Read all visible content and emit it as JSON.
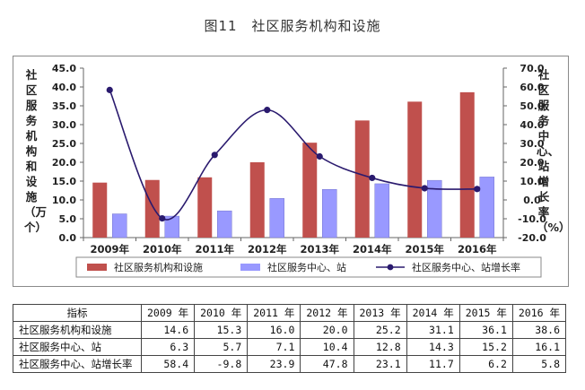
{
  "figure": {
    "number": "图11",
    "title": "社区服务机构和设施"
  },
  "chart_data": {
    "type": "bar",
    "categories": [
      "2009年",
      "2010年",
      "2011年",
      "2012年",
      "2013年",
      "2014年",
      "2015年",
      "2016年"
    ],
    "series": [
      {
        "name": "社区服务机构和设施",
        "type": "bar",
        "axis": "left",
        "color": "#c0504d",
        "values": [
          14.6,
          15.3,
          16.0,
          20.0,
          25.2,
          31.1,
          36.1,
          38.6
        ]
      },
      {
        "name": "社区服务中心、站",
        "type": "bar",
        "axis": "left",
        "color": "#9999ff",
        "values": [
          6.3,
          5.7,
          7.1,
          10.4,
          12.8,
          14.3,
          15.2,
          16.1
        ]
      },
      {
        "name": "社区服务中心、站增长率",
        "type": "line",
        "axis": "right",
        "color": "#2a1a6e",
        "values": [
          58.4,
          -9.8,
          23.9,
          47.8,
          23.1,
          11.7,
          6.2,
          5.8
        ]
      }
    ],
    "ylabel_left": "社区服务机构和设施（万个）",
    "ylabel_right": "社区服务中心、站增长率（%）",
    "ylim_left": [
      0,
      45
    ],
    "ylim_right": [
      -20,
      70
    ],
    "yticks_left": [
      "0.0",
      "5.0",
      "10.0",
      "15.0",
      "20.0",
      "25.0",
      "30.0",
      "35.0",
      "40.0",
      "45.0"
    ],
    "yticks_right": [
      "-20.0",
      "-10.0",
      "0.0",
      "10.0",
      "20.0",
      "30.0",
      "40.0",
      "50.0",
      "60.0",
      "70.0"
    ],
    "grid": false,
    "legend_position": "bottom"
  },
  "table": {
    "header": [
      "指标",
      "2009 年",
      "2010 年",
      "2011 年",
      "2012 年",
      "2013 年",
      "2014 年",
      "2015 年",
      "2016 年"
    ],
    "rows": [
      {
        "name": "社区服务机构和设施",
        "values": [
          "14.6",
          "15.3",
          "16.0",
          "20.0",
          "25.2",
          "31.1",
          "36.1",
          "38.6"
        ]
      },
      {
        "name": "社区服务中心、站",
        "values": [
          "6.3",
          "5.7",
          "7.1",
          "10.4",
          "12.8",
          "14.3",
          "15.2",
          "16.1"
        ]
      },
      {
        "name": "社区服务中心、站增长率",
        "values": [
          "58.4",
          "-9.8",
          "23.9",
          "47.8",
          "23.1",
          "11.7",
          "6.2",
          "5.8"
        ]
      }
    ]
  }
}
